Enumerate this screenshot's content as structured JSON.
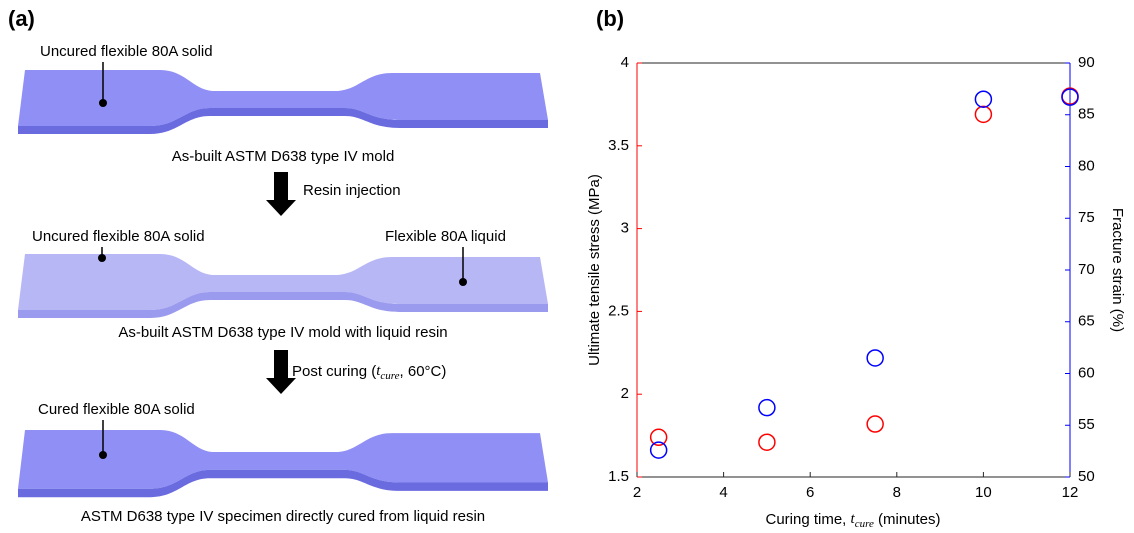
{
  "diagram": {
    "panel_label": "(a)",
    "steps": [
      {
        "labels": [
          "Uncured flexible 80A solid"
        ],
        "caption": "As-built ASTM D638 type IV mold"
      },
      {
        "labels": [
          "Uncured flexible 80A solid",
          "Flexible 80A liquid"
        ],
        "caption": "As-built ASTM D638 type IV mold with liquid resin"
      },
      {
        "labels": [
          "Cured flexible 80A solid"
        ],
        "caption": "ASTM D638 type IV specimen directly cured from liquid resin"
      }
    ],
    "arrows": [
      [
        "Resin injection"
      ],
      [
        "Post curing (",
        "t",
        "cure",
        ", 60°C)"
      ]
    ]
  },
  "chart_data": {
    "type": "scatter",
    "panel_label": "(b)",
    "x_label": [
      "Curing time, ",
      "t",
      "cure",
      " (minutes)"
    ],
    "y_label": "Ultimate tensile stress (MPa)",
    "y2_label": "Fracture strain (%)",
    "x": [
      2.5,
      5,
      7.5,
      10,
      12
    ],
    "xlim": [
      2,
      12
    ],
    "xticks": [
      2,
      4,
      6,
      8,
      10,
      12
    ],
    "ylim": [
      1.5,
      4
    ],
    "yticks": [
      1.5,
      2,
      2.5,
      3,
      3.5,
      4
    ],
    "y2lim": [
      50,
      90
    ],
    "y2ticks": [
      50,
      55,
      60,
      65,
      70,
      75,
      80,
      85,
      90
    ],
    "y_color": "#ff0000",
    "y2_color": "#0000ff",
    "series": [
      {
        "color": "#ff0000",
        "values": [
          1.74,
          1.71,
          1.82,
          3.69,
          3.8
        ]
      },
      {
        "color": "#0000ff",
        "axis": "y2",
        "values": [
          52.6,
          56.7,
          61.5,
          86.5,
          86.7
        ]
      }
    ]
  }
}
